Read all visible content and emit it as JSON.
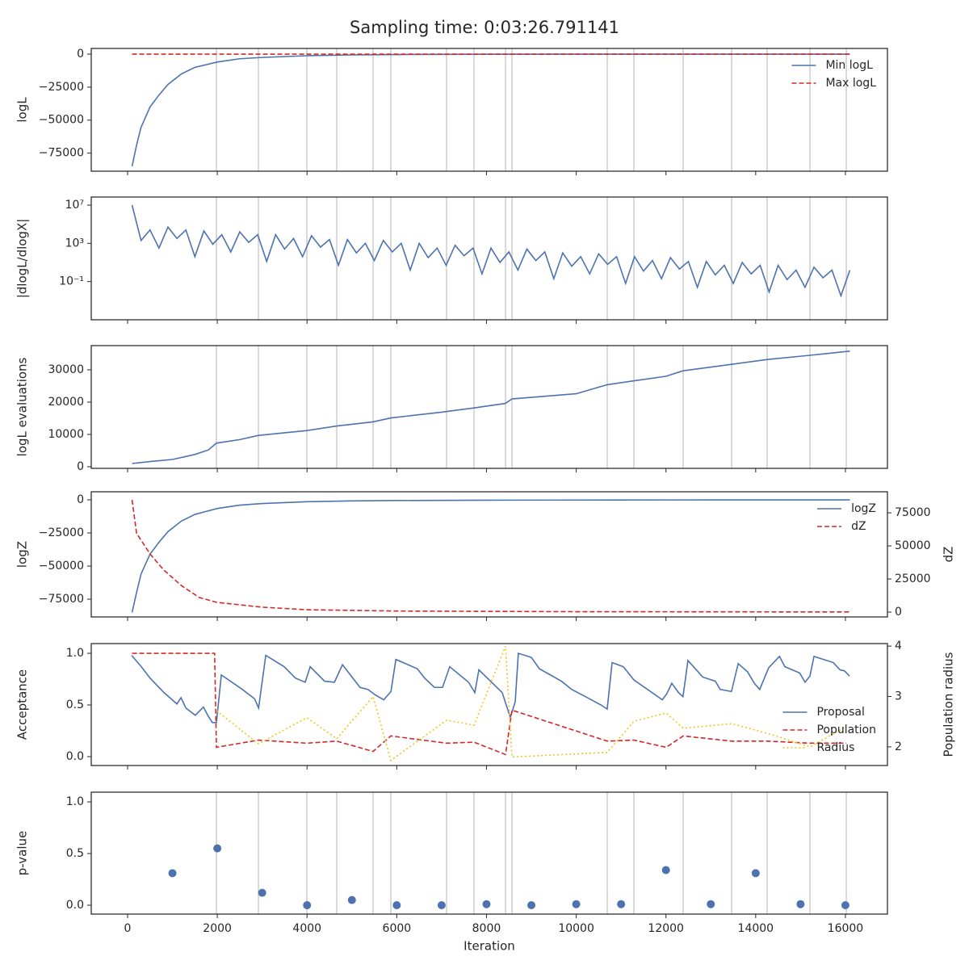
{
  "title": "Sampling time: 0:03:26.791141",
  "chart_data": [
    {
      "type": "line",
      "ylabel": "logL",
      "ylim": [
        -88700,
        4300
      ],
      "yticks": [
        {
          "value": -75000,
          "label": "−75000"
        },
        {
          "value": -50000,
          "label": "−50000"
        },
        {
          "value": -25000,
          "label": "−25000"
        },
        0
      ],
      "legend": "upper right",
      "vlines": [
        1980,
        2916,
        3996,
        4662,
        5472,
        5868,
        7110,
        7722,
        8424,
        8568,
        10692,
        11286,
        12384,
        13464,
        14256,
        15210,
        16020
      ],
      "series": [
        {
          "name": "Min logL",
          "color": "#4c72b0",
          "style": "solid",
          "x": [
            100,
            200,
            300,
            500,
            700,
            900,
            1200,
            1500,
            2000,
            2500,
            3000,
            4000,
            5000,
            6000,
            8000,
            10000,
            12000,
            14000,
            16100
          ],
          "values": [
            -85000,
            -69000,
            -55500,
            -40000,
            -31000,
            -23000,
            -15000,
            -10000,
            -6000,
            -3500,
            -2500,
            -1200,
            -600,
            -300,
            -100,
            -50,
            -20,
            -10,
            -5
          ]
        },
        {
          "name": "Max logL",
          "color": "#d62728",
          "style": "dashed",
          "x": [
            100,
            16100
          ],
          "values": [
            0,
            0
          ]
        }
      ]
    },
    {
      "type": "line",
      "ylabel": "|dlogL/dlogX|",
      "yscale": "log",
      "ylim": [
        1e-05,
        70000000.0
      ],
      "yticks": [
        {
          "value": 0.1,
          "label": "10⁻¹"
        },
        {
          "value": 1000,
          "label": "10³"
        },
        {
          "value": 10000000,
          "label": "10⁷"
        }
      ],
      "vlines": [
        1980,
        2916,
        3996,
        4662,
        5472,
        5868,
        7110,
        7722,
        8424,
        8568,
        10692,
        11286,
        12384,
        13464,
        14256,
        15210,
        16020
      ],
      "series": [
        {
          "color": "#4c72b0",
          "style": "solid",
          "x": [
            100,
            300,
            500,
            700,
            900,
            1100,
            1300,
            1500,
            1700,
            1900,
            2100,
            2300,
            2500,
            2700,
            2900,
            3100,
            3300,
            3500,
            3700,
            3900,
            4100,
            4300,
            4500,
            4700,
            4900,
            5100,
            5300,
            5500,
            5700,
            5900,
            6100,
            6300,
            6500,
            6700,
            6900,
            7100,
            7300,
            7500,
            7700,
            7900,
            8100,
            8300,
            8500,
            8700,
            8900,
            9100,
            9300,
            9500,
            9700,
            9900,
            10100,
            10300,
            10500,
            10700,
            10900,
            11100,
            11300,
            11500,
            11700,
            11900,
            12100,
            12300,
            12500,
            12700,
            12900,
            13100,
            13300,
            13500,
            13700,
            13900,
            14100,
            14300,
            14500,
            14700,
            14900,
            15100,
            15300,
            15500,
            15700,
            15900,
            16100
          ],
          "values": [
            10000000.0,
            2000.0,
            25000.0,
            320,
            50000.0,
            3200,
            25000.0,
            40,
            20000.0,
            800,
            8000,
            126,
            15800,
            1260,
            8000,
            12.6,
            8000,
            250,
            3200,
            40,
            6300,
            400,
            2500,
            5,
            2500,
            100,
            1000,
            15.8,
            2000,
            126,
            1000,
            1.58,
            1000,
            32,
            320,
            5,
            630,
            50,
            320,
            0.63,
            320,
            10,
            126,
            1.58,
            250,
            15.8,
            126,
            0.2,
            100,
            4,
            40,
            0.63,
            80,
            6.3,
            40,
            0.063,
            40,
            1.26,
            15.8,
            0.2,
            32,
            2,
            12.6,
            0.025,
            12.6,
            0.5,
            5,
            0.063,
            10,
            0.63,
            5,
            0.008,
            5,
            0.16,
            1.58,
            0.025,
            3.2,
            0.25,
            1.58,
            0.0032,
            1.58
          ]
        }
      ]
    },
    {
      "type": "line",
      "ylabel": "logL evaluations",
      "ylim": [
        -500,
        37500
      ],
      "yticks": [
        0,
        10000,
        20000,
        30000
      ],
      "vlines": [
        1980,
        2916,
        3996,
        4662,
        5472,
        5868,
        7110,
        7722,
        8424,
        8568,
        10692,
        11286,
        12384,
        13464,
        14256,
        15210,
        16020
      ],
      "series": [
        {
          "color": "#4c72b0",
          "style": "solid",
          "x": [
            100,
            500,
            1000,
            1500,
            1800,
            1980,
            2500,
            2920,
            4000,
            4660,
            5470,
            5870,
            7000,
            7720,
            8420,
            8570,
            10000,
            10690,
            11290,
            12000,
            12380,
            13460,
            14260,
            15210,
            16100
          ],
          "values": [
            1000,
            1600,
            2250,
            3800,
            5200,
            7300,
            8400,
            9700,
            11200,
            12600,
            13900,
            15100,
            16900,
            18200,
            19600,
            21000,
            22600,
            25400,
            26600,
            28000,
            29700,
            31700,
            33200,
            34500,
            35800
          ]
        }
      ]
    },
    {
      "type": "line",
      "ylabel": "logZ",
      "y2label": "dZ",
      "ylim": [
        -88400,
        6100
      ],
      "yticks": [
        {
          "value": -75000,
          "label": "−75000"
        },
        {
          "value": -50000,
          "label": "−50000"
        },
        {
          "value": -25000,
          "label": "−25000"
        },
        0
      ],
      "y2lim": [
        -3650,
        90900
      ],
      "y2ticks": [
        0,
        25000,
        50000,
        75000
      ],
      "legend": "upper right",
      "series": [
        {
          "name": "logZ",
          "color": "#4c72b0",
          "style": "solid",
          "x": [
            100,
            200,
            300,
            500,
            700,
            900,
            1200,
            1500,
            2000,
            2500,
            3000,
            4000,
            5000,
            6000,
            8000,
            10000,
            12000,
            14000,
            16100
          ],
          "values": [
            -85000,
            -70000,
            -56000,
            -41000,
            -32000,
            -24000,
            -16000,
            -11000,
            -6500,
            -4000,
            -2800,
            -1400,
            -800,
            -500,
            -250,
            -150,
            -80,
            -50,
            -30
          ]
        },
        {
          "name": "dZ",
          "color": "#d62728",
          "style": "dashed",
          "axis": "y2",
          "x": [
            100,
            200,
            500,
            800,
            1200,
            1600,
            2000,
            3000,
            4000,
            6000,
            10000,
            16100
          ],
          "values": [
            84750,
            59500,
            44000,
            32000,
            20000,
            11000,
            7300,
            3700,
            1800,
            800,
            300,
            100
          ]
        }
      ]
    },
    {
      "type": "line",
      "ylabel": "Acceptance",
      "y2label": "Population radius",
      "ylim": [
        -0.086,
        1.094
      ],
      "yticks": [
        {
          "value": 0,
          "label": "0.0"
        },
        0.5,
        {
          "value": 1,
          "label": "1.0"
        }
      ],
      "y2lim": [
        1.63,
        4.05
      ],
      "y2ticks": [
        2,
        3,
        4
      ],
      "legend": "lower right",
      "series": [
        {
          "name": "Proposal",
          "color": "#4c72b0",
          "style": "solid",
          "x": [
            90,
            306,
            500,
            810,
            1100,
            1190,
            1300,
            1510,
            1690,
            1800,
            1890,
            1980,
            2090,
            2560,
            2830,
            2920,
            3080,
            3490,
            3740,
            3960,
            4070,
            4390,
            4610,
            4790,
            5180,
            5360,
            5510,
            5710,
            5870,
            5980,
            6460,
            6620,
            6840,
            7020,
            7180,
            7600,
            7740,
            7830,
            8350,
            8530,
            8640,
            8710,
            9000,
            9180,
            9670,
            9900,
            10210,
            10550,
            10690,
            10800,
            11050,
            11290,
            11590,
            11920,
            12020,
            12130,
            12280,
            12380,
            12490,
            12820,
            13100,
            13210,
            13460,
            13610,
            13820,
            13970,
            14090,
            14290,
            14530,
            14650,
            14980,
            15100,
            15210,
            15300,
            15730,
            15880,
            15980,
            16090
          ],
          "values": [
            0.98,
            0.87,
            0.76,
            0.62,
            0.51,
            0.57,
            0.47,
            0.4,
            0.48,
            0.39,
            0.33,
            0.33,
            0.79,
            0.65,
            0.56,
            0.47,
            0.98,
            0.87,
            0.76,
            0.72,
            0.87,
            0.73,
            0.72,
            0.89,
            0.67,
            0.65,
            0.6,
            0.55,
            0.63,
            0.94,
            0.85,
            0.76,
            0.67,
            0.67,
            0.87,
            0.72,
            0.62,
            0.84,
            0.62,
            0.38,
            0.53,
            1.0,
            0.96,
            0.85,
            0.73,
            0.65,
            0.58,
            0.5,
            0.46,
            0.91,
            0.87,
            0.74,
            0.65,
            0.55,
            0.61,
            0.71,
            0.62,
            0.58,
            0.93,
            0.77,
            0.73,
            0.65,
            0.63,
            0.9,
            0.82,
            0.71,
            0.65,
            0.86,
            0.97,
            0.87,
            0.81,
            0.72,
            0.78,
            0.97,
            0.91,
            0.84,
            0.83,
            0.78
          ]
        },
        {
          "name": "Population",
          "color": "#d62728",
          "style": "dashed",
          "x": [
            100,
            1940,
            1980,
            2916,
            3996,
            4662,
            5472,
            5868,
            7110,
            7722,
            8424,
            8568,
            10692,
            11286,
            12006,
            12384,
            13464,
            14256,
            15210,
            16020
          ],
          "values": [
            1.0,
            1.0,
            0.09,
            0.16,
            0.13,
            0.15,
            0.05,
            0.2,
            0.13,
            0.14,
            0.02,
            0.45,
            0.15,
            0.16,
            0.09,
            0.2,
            0.15,
            0.15,
            0.13,
            0.13
          ]
        },
        {
          "name": "Radius",
          "color": "#f0c419",
          "style": "dotted",
          "axis": "y2",
          "x": [
            1980,
            2916,
            3996,
            4662,
            5472,
            5868,
            7110,
            7722,
            8424,
            8568,
            10692,
            11286,
            12006,
            12384,
            13464,
            14256,
            15210,
            16020
          ],
          "values": [
            2.72,
            2.06,
            2.58,
            2.16,
            3.0,
            1.73,
            2.53,
            2.43,
            4.0,
            1.8,
            1.89,
            2.51,
            2.67,
            2.37,
            2.46,
            2.27,
            2.0,
            2.4
          ]
        }
      ]
    },
    {
      "type": "scatter",
      "ylabel": "p-value",
      "xlabel": "Iteration",
      "ylim": [
        -0.086,
        1.094
      ],
      "yticks": [
        {
          "value": 0,
          "label": "0.0"
        },
        0.5,
        {
          "value": 1,
          "label": "1.0"
        }
      ],
      "xlim": [
        -810,
        16937
      ],
      "xticks": [
        0,
        2000,
        4000,
        6000,
        8000,
        10000,
        12000,
        14000,
        16000
      ],
      "vlines": [
        1980,
        2916,
        3996,
        4662,
        5472,
        5868,
        7110,
        7722,
        8424,
        8568,
        10692,
        11286,
        12384,
        13464,
        14256,
        15210,
        16020
      ],
      "series": [
        {
          "color": "#4c72b0",
          "x": [
            1000,
            2000,
            3000,
            4000,
            5000,
            6000,
            7000,
            8000,
            9000,
            10000,
            11000,
            12000,
            13000,
            14000,
            15000,
            16000
          ],
          "values": [
            0.31,
            0.55,
            0.12,
            0.0,
            0.05,
            0.0,
            0.0,
            0.01,
            0.0,
            0.01,
            0.01,
            0.34,
            0.01,
            0.31,
            0.01,
            0.0
          ]
        }
      ]
    }
  ]
}
